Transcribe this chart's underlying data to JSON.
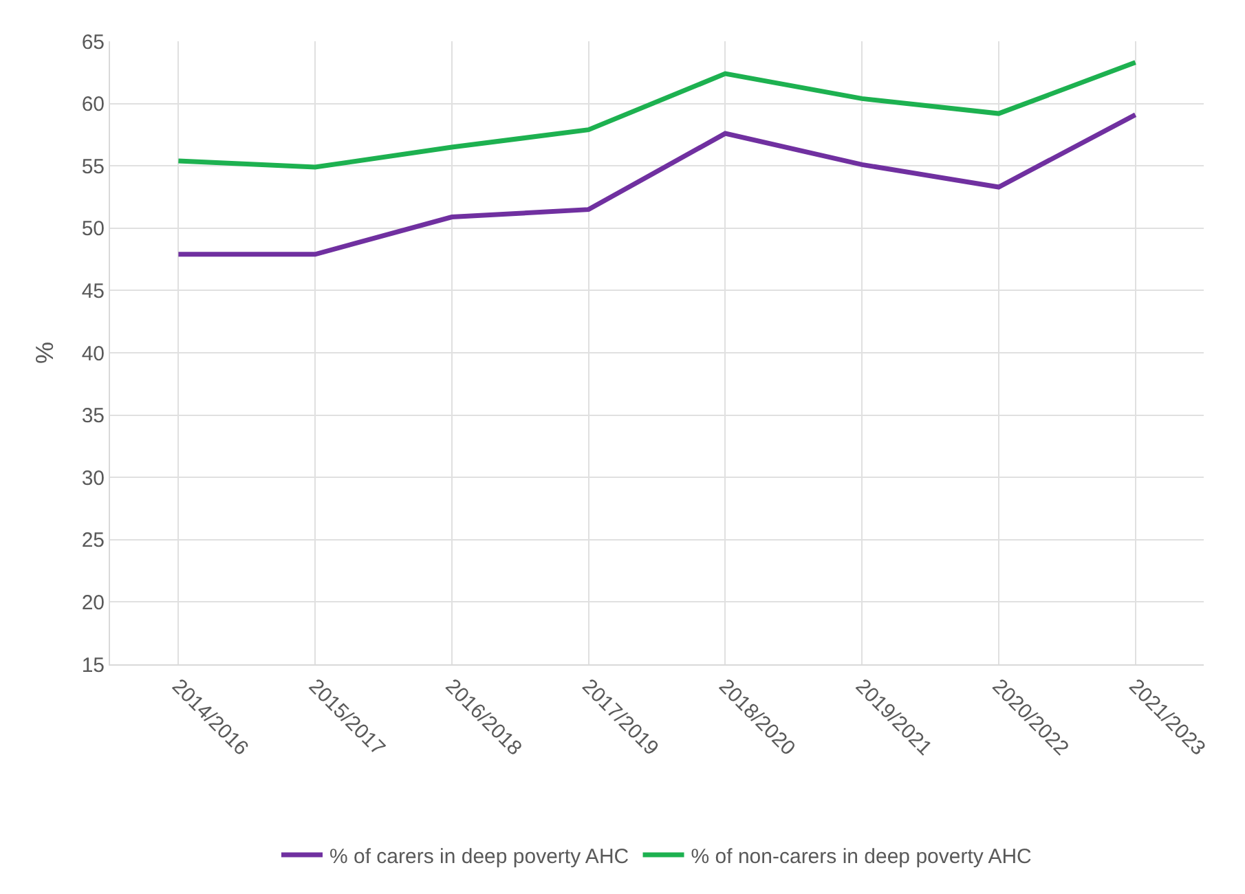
{
  "chart_data": {
    "type": "line",
    "ylabel": "%",
    "categories": [
      "2014/2016",
      "2015/2017",
      "2016/2018",
      "2017/2019",
      "2018/2020",
      "2019/2021",
      "2020/2022",
      "2021/2023"
    ],
    "series": [
      {
        "name": "% of carers in deep poverty AHC",
        "color": "#7030a0",
        "values": [
          47.9,
          47.9,
          50.9,
          51.5,
          57.6,
          55.1,
          53.3,
          59.1
        ]
      },
      {
        "name": "% of non-carers in deep poverty AHC",
        "color": "#1db150",
        "values": [
          55.4,
          54.9,
          56.5,
          57.9,
          62.4,
          60.4,
          59.2,
          63.3
        ]
      }
    ],
    "ylim": [
      15,
      65
    ],
    "yticks": [
      15,
      20,
      25,
      30,
      35,
      40,
      45,
      50,
      55,
      60,
      65
    ],
    "grid": true,
    "legend": "bottom",
    "marker": "none",
    "line_style": "solid"
  }
}
